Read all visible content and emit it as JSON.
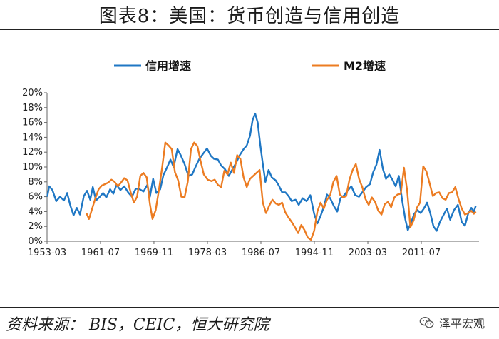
{
  "page": {
    "title": "图表8：美国：货币创造与信用创造",
    "source": "资料来源： BIS，CEIC，恒大研究院",
    "watermark": "泽平宏观",
    "colors": {
      "credit": "#1f77c4",
      "m2": "#ec7c22",
      "axis": "#666666",
      "text": "#222222"
    }
  },
  "chart_data": {
    "type": "line",
    "title": "",
    "xlabel": "",
    "ylabel": "",
    "x_range": [
      1953.17,
      2020.5
    ],
    "ylim": [
      0,
      20
    ],
    "y_ticks": [
      "0%",
      "2%",
      "4%",
      "6%",
      "8%",
      "10%",
      "12%",
      "14%",
      "16%",
      "18%",
      "20%"
    ],
    "x_ticks": [
      "1953-03",
      "1961-07",
      "1969-11",
      "1978-03",
      "1986-07",
      "1994-11",
      "2003-03",
      "2011-07"
    ],
    "x_tick_values": [
      1953.17,
      1961.5,
      1969.83,
      1978.17,
      1986.5,
      1994.83,
      2003.17,
      2011.5
    ],
    "legend": "top",
    "grid": false,
    "series": [
      {
        "name": "信用增速",
        "color": "#1f77c4",
        "points": [
          [
            1953.2,
            6.0
          ],
          [
            1953.5,
            7.4
          ],
          [
            1954.0,
            6.9
          ],
          [
            1954.6,
            5.4
          ],
          [
            1955.2,
            6.0
          ],
          [
            1955.8,
            5.5
          ],
          [
            1956.3,
            6.5
          ],
          [
            1956.8,
            4.8
          ],
          [
            1957.3,
            3.5
          ],
          [
            1957.8,
            4.5
          ],
          [
            1958.3,
            3.6
          ],
          [
            1958.9,
            6.1
          ],
          [
            1959.4,
            6.8
          ],
          [
            1959.9,
            5.6
          ],
          [
            1960.3,
            7.3
          ],
          [
            1960.8,
            5.5
          ],
          [
            1961.4,
            6.0
          ],
          [
            1961.9,
            6.5
          ],
          [
            1962.4,
            5.9
          ],
          [
            1963.0,
            7.0
          ],
          [
            1963.5,
            6.4
          ],
          [
            1964.0,
            7.6
          ],
          [
            1964.6,
            6.9
          ],
          [
            1965.2,
            7.4
          ],
          [
            1965.8,
            6.6
          ],
          [
            1966.4,
            6.0
          ],
          [
            1967.0,
            7.1
          ],
          [
            1967.6,
            7.0
          ],
          [
            1968.2,
            6.7
          ],
          [
            1968.8,
            7.6
          ],
          [
            1969.2,
            6.0
          ],
          [
            1969.7,
            8.4
          ],
          [
            1970.2,
            6.5
          ],
          [
            1970.8,
            7.0
          ],
          [
            1971.3,
            8.9
          ],
          [
            1971.9,
            10.0
          ],
          [
            1972.4,
            11.0
          ],
          [
            1972.9,
            10.0
          ],
          [
            1973.5,
            12.4
          ],
          [
            1974.0,
            11.6
          ],
          [
            1974.6,
            10.4
          ],
          [
            1975.2,
            8.8
          ],
          [
            1975.8,
            9.0
          ],
          [
            1976.3,
            10.0
          ],
          [
            1976.9,
            11.1
          ],
          [
            1977.5,
            11.8
          ],
          [
            1978.1,
            12.5
          ],
          [
            1978.7,
            11.5
          ],
          [
            1979.2,
            11.1
          ],
          [
            1979.8,
            11.0
          ],
          [
            1980.3,
            10.2
          ],
          [
            1980.9,
            9.7
          ],
          [
            1981.5,
            8.8
          ],
          [
            1982.0,
            9.6
          ],
          [
            1982.6,
            10.5
          ],
          [
            1983.2,
            11.6
          ],
          [
            1983.8,
            12.4
          ],
          [
            1984.3,
            12.9
          ],
          [
            1984.8,
            14.2
          ],
          [
            1985.2,
            16.3
          ],
          [
            1985.6,
            17.2
          ],
          [
            1986.0,
            16.0
          ],
          [
            1986.4,
            13.0
          ],
          [
            1986.8,
            10.4
          ],
          [
            1987.2,
            8.0
          ],
          [
            1987.7,
            9.6
          ],
          [
            1988.2,
            8.6
          ],
          [
            1988.8,
            8.2
          ],
          [
            1989.3,
            7.5
          ],
          [
            1989.8,
            6.6
          ],
          [
            1990.3,
            6.6
          ],
          [
            1990.8,
            6.1
          ],
          [
            1991.3,
            5.4
          ],
          [
            1991.9,
            5.6
          ],
          [
            1992.4,
            4.9
          ],
          [
            1993.0,
            5.8
          ],
          [
            1993.6,
            5.4
          ],
          [
            1994.2,
            6.2
          ],
          [
            1994.8,
            3.7
          ],
          [
            1995.3,
            2.4
          ],
          [
            1995.8,
            3.4
          ],
          [
            1996.3,
            4.6
          ],
          [
            1996.8,
            6.3
          ],
          [
            1997.3,
            5.8
          ],
          [
            1997.9,
            4.7
          ],
          [
            1998.4,
            4.0
          ],
          [
            1998.9,
            5.8
          ],
          [
            1999.5,
            6.2
          ],
          [
            2000.0,
            6.8
          ],
          [
            2000.6,
            7.4
          ],
          [
            2001.2,
            6.2
          ],
          [
            2001.8,
            6.0
          ],
          [
            2002.3,
            6.6
          ],
          [
            2002.9,
            7.3
          ],
          [
            2003.5,
            7.7
          ],
          [
            2004.0,
            9.3
          ],
          [
            2004.5,
            10.3
          ],
          [
            2005.0,
            12.3
          ],
          [
            2005.5,
            9.8
          ],
          [
            2006.0,
            8.4
          ],
          [
            2006.5,
            9.0
          ],
          [
            2007.0,
            8.3
          ],
          [
            2007.5,
            7.4
          ],
          [
            2008.0,
            8.8
          ],
          [
            2008.5,
            5.6
          ],
          [
            2009.0,
            3.0
          ],
          [
            2009.4,
            1.5
          ],
          [
            2009.9,
            2.5
          ],
          [
            2010.4,
            3.7
          ],
          [
            2010.9,
            4.2
          ],
          [
            2011.4,
            3.8
          ],
          [
            2011.9,
            4.4
          ],
          [
            2012.4,
            5.2
          ],
          [
            2012.9,
            3.8
          ],
          [
            2013.4,
            2.0
          ],
          [
            2013.9,
            1.4
          ],
          [
            2014.4,
            2.6
          ],
          [
            2015.0,
            3.6
          ],
          [
            2015.5,
            4.4
          ],
          [
            2016.0,
            2.9
          ],
          [
            2016.6,
            4.2
          ],
          [
            2017.2,
            4.9
          ],
          [
            2017.8,
            2.6
          ],
          [
            2018.3,
            2.1
          ],
          [
            2018.8,
            3.7
          ],
          [
            2019.3,
            4.5
          ],
          [
            2019.7,
            4.0
          ],
          [
            2020.0,
            4.8
          ]
        ]
      },
      {
        "name": "M2增速",
        "color": "#ec7c22",
        "points": [
          [
            1959.3,
            3.8
          ],
          [
            1959.7,
            3.0
          ],
          [
            1960.2,
            4.4
          ],
          [
            1960.7,
            5.8
          ],
          [
            1961.2,
            7.0
          ],
          [
            1961.7,
            7.5
          ],
          [
            1962.2,
            7.7
          ],
          [
            1962.7,
            7.9
          ],
          [
            1963.2,
            8.3
          ],
          [
            1963.7,
            8.0
          ],
          [
            1964.2,
            7.4
          ],
          [
            1964.7,
            7.9
          ],
          [
            1965.2,
            8.5
          ],
          [
            1965.7,
            8.2
          ],
          [
            1966.2,
            6.6
          ],
          [
            1966.7,
            5.2
          ],
          [
            1967.2,
            6.0
          ],
          [
            1967.7,
            8.8
          ],
          [
            1968.2,
            9.2
          ],
          [
            1968.7,
            8.6
          ],
          [
            1969.2,
            5.0
          ],
          [
            1969.6,
            3.0
          ],
          [
            1970.1,
            4.2
          ],
          [
            1970.6,
            6.9
          ],
          [
            1971.1,
            9.9
          ],
          [
            1971.6,
            13.3
          ],
          [
            1972.1,
            12.9
          ],
          [
            1972.6,
            12.4
          ],
          [
            1973.1,
            9.3
          ],
          [
            1973.6,
            8.2
          ],
          [
            1974.1,
            6.0
          ],
          [
            1974.6,
            5.9
          ],
          [
            1975.1,
            8.0
          ],
          [
            1975.6,
            12.4
          ],
          [
            1976.1,
            13.3
          ],
          [
            1976.6,
            12.8
          ],
          [
            1977.1,
            10.8
          ],
          [
            1977.6,
            9.0
          ],
          [
            1978.2,
            8.3
          ],
          [
            1978.8,
            8.1
          ],
          [
            1979.3,
            8.3
          ],
          [
            1979.8,
            7.6
          ],
          [
            1980.3,
            7.3
          ],
          [
            1980.8,
            9.5
          ],
          [
            1981.3,
            9.0
          ],
          [
            1981.8,
            10.6
          ],
          [
            1982.3,
            9.2
          ],
          [
            1982.8,
            11.6
          ],
          [
            1983.3,
            11.1
          ],
          [
            1983.8,
            8.6
          ],
          [
            1984.3,
            7.3
          ],
          [
            1984.8,
            8.4
          ],
          [
            1985.3,
            8.8
          ],
          [
            1985.8,
            9.2
          ],
          [
            1986.3,
            9.6
          ],
          [
            1986.8,
            5.2
          ],
          [
            1987.3,
            3.8
          ],
          [
            1987.8,
            4.8
          ],
          [
            1988.3,
            5.6
          ],
          [
            1988.8,
            5.1
          ],
          [
            1989.3,
            4.9
          ],
          [
            1989.8,
            5.2
          ],
          [
            1990.3,
            3.9
          ],
          [
            1990.8,
            3.2
          ],
          [
            1991.3,
            2.6
          ],
          [
            1991.8,
            1.9
          ],
          [
            1992.3,
            1.1
          ],
          [
            1992.8,
            2.2
          ],
          [
            1993.3,
            1.5
          ],
          [
            1993.8,
            0.5
          ],
          [
            1994.3,
            0.2
          ],
          [
            1994.8,
            1.4
          ],
          [
            1995.3,
            4.0
          ],
          [
            1995.8,
            5.2
          ],
          [
            1996.3,
            4.4
          ],
          [
            1996.8,
            5.6
          ],
          [
            1997.3,
            6.2
          ],
          [
            1997.8,
            8.0
          ],
          [
            1998.3,
            8.8
          ],
          [
            1998.8,
            6.3
          ],
          [
            1999.3,
            5.9
          ],
          [
            1999.8,
            6.1
          ],
          [
            2000.3,
            8.3
          ],
          [
            2000.8,
            9.6
          ],
          [
            2001.3,
            10.4
          ],
          [
            2001.8,
            8.4
          ],
          [
            2002.3,
            7.3
          ],
          [
            2002.8,
            5.7
          ],
          [
            2003.3,
            4.9
          ],
          [
            2003.8,
            5.9
          ],
          [
            2004.3,
            5.3
          ],
          [
            2004.8,
            4.1
          ],
          [
            2005.3,
            3.6
          ],
          [
            2005.8,
            5.0
          ],
          [
            2006.3,
            5.3
          ],
          [
            2006.8,
            4.6
          ],
          [
            2007.3,
            5.9
          ],
          [
            2007.8,
            6.3
          ],
          [
            2008.3,
            6.4
          ],
          [
            2008.8,
            9.9
          ],
          [
            2009.3,
            6.8
          ],
          [
            2009.8,
            1.9
          ],
          [
            2010.3,
            2.8
          ],
          [
            2010.8,
            4.5
          ],
          [
            2011.3,
            5.2
          ],
          [
            2011.8,
            10.1
          ],
          [
            2012.3,
            9.4
          ],
          [
            2012.8,
            7.8
          ],
          [
            2013.3,
            6.1
          ],
          [
            2013.8,
            6.5
          ],
          [
            2014.3,
            6.6
          ],
          [
            2014.8,
            5.8
          ],
          [
            2015.3,
            5.6
          ],
          [
            2015.8,
            6.5
          ],
          [
            2016.3,
            6.6
          ],
          [
            2016.8,
            7.3
          ],
          [
            2017.3,
            5.7
          ],
          [
            2017.8,
            4.4
          ],
          [
            2018.3,
            3.6
          ],
          [
            2018.8,
            3.8
          ],
          [
            2019.3,
            4.1
          ],
          [
            2019.7,
            3.7
          ],
          [
            2020.0,
            4.0
          ]
        ]
      }
    ]
  }
}
